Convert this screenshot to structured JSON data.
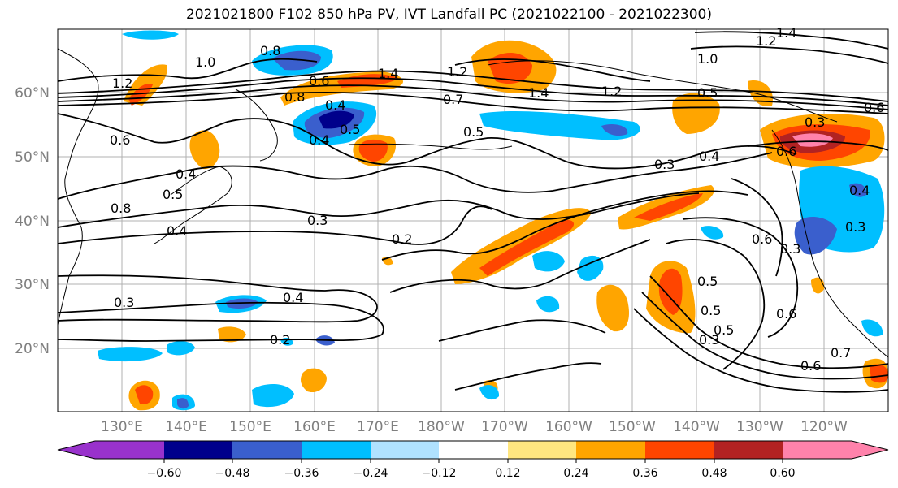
{
  "title": "2021021800 F102 850 hPa PV, IVT Landfall PC (2021022100 - 2021022300)",
  "lat_labels": [
    "60°N",
    "50°N",
    "40°N",
    "30°N",
    "20°N"
  ],
  "lon_labels": [
    "130°E",
    "140°E",
    "150°E",
    "160°E",
    "170°E",
    "180°W",
    "170°W",
    "160°W",
    "150°W",
    "140°W",
    "130°W",
    "120°W"
  ],
  "colorbar": {
    "ticks": [
      "−0.60",
      "−0.48",
      "−0.36",
      "−0.24",
      "−0.12",
      "0.12",
      "0.24",
      "0.36",
      "0.48",
      "0.60"
    ],
    "colors": [
      "#9932cc",
      "#00008b",
      "#3a5fcd",
      "#00bfff",
      "#b0e2ff",
      "#ffffff",
      "#ffe680",
      "#ffa500",
      "#ff4500",
      "#b22222",
      "#ff82ab"
    ]
  },
  "contour_labels": [
    "0.8",
    "1.0",
    "1.2",
    "1.4",
    "1.2",
    "1.4",
    "1.0",
    "1.2",
    "1.4",
    "0.6",
    "0.7",
    "0.5",
    "0.4",
    "0.5",
    "0.5",
    "0.4",
    "0.3",
    "0.4",
    "0.3",
    "0.2",
    "0.3",
    "0.4",
    "0.2",
    "0.6",
    "0.5",
    "0.5",
    "0.6",
    "0.3",
    "0.5",
    "0.6",
    "0.7",
    "0.3",
    "0.4",
    "0.8",
    "0.6",
    "0.4",
    "0.6",
    "0.5",
    "0.4",
    "0.3",
    "0.6",
    "0.3",
    "0.8",
    "1.2"
  ]
}
